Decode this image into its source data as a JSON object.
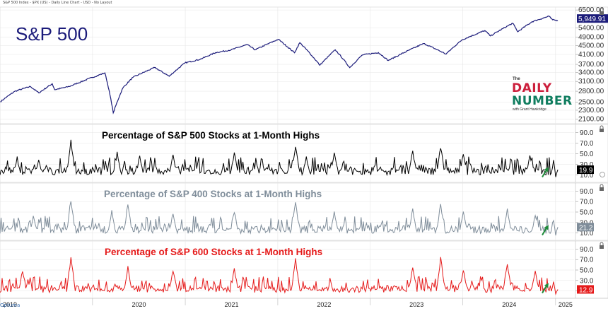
{
  "header_text": "S&P 500 Index - $PX (US) - Daily Line Chart - USD - No Layout",
  "brand": "Optuma",
  "logo": {
    "the": "The",
    "line1": "DAILY",
    "line2": "NUMBER",
    "byline": "with Grant Hawkridge"
  },
  "colors": {
    "spx": "#1b1b7a",
    "p1": "#000000",
    "p2": "#7f8d9a",
    "p3": "#e51a1a",
    "arrow": "#1e8c3a",
    "grid": "#e6e6e6"
  },
  "chart_data": [
    {
      "type": "line",
      "title": "S&P 500",
      "series": [
        {
          "x": [
            "2019-01-02",
            "2019-03-01",
            "2019-05-01",
            "2019-06-03",
            "2019-07-26",
            "2019-08-05",
            "2019-10-01",
            "2019-12-31",
            "2020-02-19",
            "2020-03-23",
            "2020-04-30",
            "2020-06-08",
            "2020-09-02",
            "2020-10-30",
            "2020-12-31",
            "2021-03-01",
            "2021-05-01",
            "2021-07-01",
            "2021-09-02",
            "2021-10-04",
            "2022-01-03",
            "2022-03-08",
            "2022-03-29",
            "2022-06-16",
            "2022-08-16",
            "2022-10-12",
            "2022-12-01",
            "2023-02-02",
            "2023-03-13",
            "2023-07-31",
            "2023-10-27",
            "2023-12-29",
            "2024-03-28",
            "2024-04-19",
            "2024-07-16",
            "2024-08-05",
            "2024-10-01",
            "2024-12-06",
            "2024-12-20",
            "2025-01-10"
          ],
          "y": [
            2510,
            2800,
            2940,
            2750,
            3025,
            2845,
            2940,
            3230,
            3386,
            2237,
            2900,
            3230,
            3580,
            3270,
            3756,
            3900,
            4180,
            4300,
            4540,
            4300,
            4796,
            4170,
            4630,
            3667,
            4300,
            3577,
            4080,
            4180,
            3850,
            4590,
            4117,
            4770,
            5250,
            4967,
            5667,
            5186,
            5760,
            6090,
            5870,
            5827
          ]
        }
      ],
      "price_axis": {
        "scale": "log",
        "ticks": [
          "6500.00",
          "5400.00",
          "4900.00",
          "4500.00",
          "4100.00",
          "3700.00",
          "3400.00",
          "3100.00",
          "2800.00",
          "2500.00",
          "2300.00",
          "2100.00"
        ],
        "ylim": [
          2000,
          6700
        ]
      },
      "last_value_label": "5,949.91"
    },
    {
      "type": "line",
      "title": "Percentage of S&P 500 Stocks at 1-Month Highs",
      "ylim": [
        0,
        100
      ],
      "y_ticks": [
        "90.0",
        "70.0",
        "50.0",
        "30.0",
        "10.0"
      ],
      "series": [
        {
          "base": 10,
          "spread": 25,
          "spikes": [
            [
              0.03,
              45
            ],
            [
              0.07,
              40
            ],
            [
              0.127,
              80
            ],
            [
              0.21,
              55
            ],
            [
              0.25,
              48
            ],
            [
              0.31,
              50
            ],
            [
              0.42,
              55
            ],
            [
              0.53,
              72
            ],
            [
              0.55,
              48
            ],
            [
              0.6,
              55
            ],
            [
              0.74,
              60
            ],
            [
              0.79,
              70
            ],
            [
              0.83,
              55
            ],
            [
              0.95,
              52
            ]
          ]
        }
      ],
      "last_value_label": "19.9"
    },
    {
      "type": "line",
      "title": "Percentage of S&P 400 Stocks at 1-Month Highs",
      "ylim": [
        0,
        100
      ],
      "y_ticks": [
        "90.0",
        "70.0",
        "50.0",
        "30.0",
        "10.0"
      ],
      "series": [
        {
          "base": 9,
          "spread": 24,
          "spikes": [
            [
              0.06,
              45
            ],
            [
              0.127,
              82
            ],
            [
              0.2,
              55
            ],
            [
              0.23,
              70
            ],
            [
              0.31,
              52
            ],
            [
              0.42,
              55
            ],
            [
              0.53,
              75
            ],
            [
              0.6,
              52
            ],
            [
              0.74,
              62
            ],
            [
              0.79,
              72
            ],
            [
              0.83,
              55
            ],
            [
              0.91,
              58
            ],
            [
              0.96,
              48
            ]
          ]
        }
      ],
      "last_value_label": "21.2"
    },
    {
      "type": "line",
      "title": "Percentage of S&P 600 Stocks at 1-Month Highs",
      "ylim": [
        0,
        100
      ],
      "y_ticks": [
        "90.0",
        "70.0",
        "50.0",
        "30.0",
        "10.0"
      ],
      "series": [
        {
          "base": 7,
          "spread": 22,
          "spikes": [
            [
              0.04,
              52
            ],
            [
              0.127,
              82
            ],
            [
              0.23,
              58
            ],
            [
              0.31,
              55
            ],
            [
              0.42,
              55
            ],
            [
              0.53,
              75
            ],
            [
              0.74,
              62
            ],
            [
              0.79,
              80
            ],
            [
              0.83,
              55
            ],
            [
              0.91,
              70
            ],
            [
              0.96,
              52
            ]
          ]
        }
      ],
      "last_value_label": "12.9"
    }
  ],
  "x_axis": {
    "labels": [
      "2019",
      "2020",
      "2021",
      "2022",
      "2023",
      "2024",
      "2025"
    ],
    "range": [
      "2019-01-01",
      "2025-03-15"
    ]
  }
}
